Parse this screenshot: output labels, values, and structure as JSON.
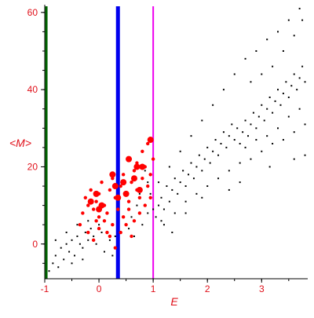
{
  "chart_data": {
    "type": "scatter",
    "title": "",
    "xlabel": "E",
    "ylabel": "<M>",
    "xlim": [
      -1.0,
      3.85
    ],
    "ylim": [
      -9.0,
      62.0
    ],
    "xticks": [
      -1,
      0,
      1,
      2,
      3
    ],
    "yticks": [
      0,
      20,
      40,
      60
    ],
    "grid": false,
    "axis_color": "#000000",
    "label_color": "#e0101a",
    "vertical_lines": [
      {
        "x": -0.97,
        "color": "#006400"
      },
      {
        "x": 0.35,
        "color": "#0000ee"
      },
      {
        "x": 1.0,
        "color": "#ee00ee"
      }
    ],
    "series": [
      {
        "color": "#000000",
        "point_size": "small",
        "points": [
          [
            -0.92,
            -7
          ],
          [
            -0.85,
            -5
          ],
          [
            -0.8,
            -3
          ],
          [
            -0.75,
            -6
          ],
          [
            -0.7,
            -1
          ],
          [
            -0.65,
            -4
          ],
          [
            -0.6,
            0
          ],
          [
            -0.55,
            -2
          ],
          [
            -0.5,
            1
          ],
          [
            -0.45,
            -3
          ],
          [
            -0.4,
            2
          ],
          [
            -0.35,
            0
          ],
          [
            -0.3,
            -1
          ],
          [
            -0.25,
            3
          ],
          [
            -0.2,
            1
          ],
          [
            -0.15,
            4
          ],
          [
            -0.1,
            2
          ],
          [
            -0.05,
            0
          ],
          [
            0.0,
            5
          ],
          [
            0.05,
            3
          ],
          [
            -0.8,
            1
          ],
          [
            -0.6,
            3
          ],
          [
            -0.4,
            5
          ],
          [
            -0.2,
            6
          ],
          [
            0.1,
            -2
          ],
          [
            0.2,
            1
          ],
          [
            0.25,
            -3
          ],
          [
            0.3,
            2
          ],
          [
            -0.3,
            -4
          ],
          [
            -0.5,
            -5
          ],
          [
            1.05,
            7
          ],
          [
            1.1,
            10
          ],
          [
            1.15,
            12
          ],
          [
            1.2,
            9
          ],
          [
            1.25,
            15
          ],
          [
            1.3,
            11
          ],
          [
            1.35,
            14
          ],
          [
            1.4,
            17
          ],
          [
            1.45,
            13
          ],
          [
            1.5,
            16
          ],
          [
            1.55,
            19
          ],
          [
            1.6,
            15
          ],
          [
            1.65,
            18
          ],
          [
            1.7,
            21
          ],
          [
            1.75,
            17
          ],
          [
            1.8,
            20
          ],
          [
            1.85,
            23
          ],
          [
            1.9,
            19
          ],
          [
            1.95,
            22
          ],
          [
            2.0,
            25
          ],
          [
            2.05,
            21
          ],
          [
            2.1,
            24
          ],
          [
            2.15,
            27
          ],
          [
            2.2,
            23
          ],
          [
            2.25,
            26
          ],
          [
            2.3,
            29
          ],
          [
            2.35,
            25
          ],
          [
            2.4,
            28
          ],
          [
            2.45,
            31
          ],
          [
            2.5,
            27
          ],
          [
            2.55,
            30
          ],
          [
            2.6,
            26
          ],
          [
            2.65,
            29
          ],
          [
            2.7,
            32
          ],
          [
            2.75,
            28
          ],
          [
            2.8,
            31
          ],
          [
            2.85,
            34
          ],
          [
            2.9,
            30
          ],
          [
            2.95,
            33
          ],
          [
            3.0,
            36
          ],
          [
            3.05,
            32
          ],
          [
            3.1,
            35
          ],
          [
            3.15,
            38
          ],
          [
            3.2,
            34
          ],
          [
            3.25,
            37
          ],
          [
            3.3,
            40
          ],
          [
            3.35,
            36
          ],
          [
            3.4,
            39
          ],
          [
            3.45,
            42
          ],
          [
            3.5,
            38
          ],
          [
            3.55,
            41
          ],
          [
            3.6,
            44
          ],
          [
            3.65,
            40
          ],
          [
            3.7,
            43
          ],
          [
            3.75,
            46
          ],
          [
            3.8,
            42
          ],
          [
            1.1,
            16
          ],
          [
            1.3,
            20
          ],
          [
            1.5,
            24
          ],
          [
            1.7,
            28
          ],
          [
            1.9,
            32
          ],
          [
            2.1,
            36
          ],
          [
            2.3,
            40
          ],
          [
            2.5,
            44
          ],
          [
            2.7,
            48
          ],
          [
            2.9,
            50
          ],
          [
            3.1,
            53
          ],
          [
            3.3,
            55
          ],
          [
            3.5,
            58
          ],
          [
            3.7,
            61
          ],
          [
            3.75,
            58
          ],
          [
            3.6,
            54
          ],
          [
            3.4,
            50
          ],
          [
            3.2,
            46
          ],
          [
            3.0,
            44
          ],
          [
            2.8,
            42
          ],
          [
            1.2,
            5
          ],
          [
            1.4,
            8
          ],
          [
            1.6,
            11
          ],
          [
            1.8,
            13
          ],
          [
            2.0,
            15
          ],
          [
            2.2,
            17
          ],
          [
            2.4,
            19
          ],
          [
            2.6,
            21
          ],
          [
            2.8,
            22
          ],
          [
            3.0,
            24
          ],
          [
            3.2,
            26
          ],
          [
            3.4,
            27
          ],
          [
            3.6,
            29
          ],
          [
            3.8,
            31
          ],
          [
            3.7,
            35
          ],
          [
            3.5,
            33
          ],
          [
            3.3,
            30
          ],
          [
            3.1,
            28
          ],
          [
            2.9,
            27
          ],
          [
            2.7,
            25
          ],
          [
            1.0,
            9
          ],
          [
            1.15,
            6
          ],
          [
            1.35,
            3
          ],
          [
            1.6,
            8
          ],
          [
            1.9,
            12
          ],
          [
            2.4,
            14
          ],
          [
            2.6,
            16
          ],
          [
            3.15,
            20
          ],
          [
            3.6,
            22
          ],
          [
            3.8,
            23
          ],
          [
            0.95,
            13
          ],
          [
            0.9,
            16
          ],
          [
            0.85,
            19
          ],
          [
            0.9,
            8
          ],
          [
            0.8,
            5
          ],
          [
            0.7,
            10
          ],
          [
            0.75,
            13
          ],
          [
            0.6,
            7
          ],
          [
            0.55,
            4
          ],
          [
            0.65,
            2
          ]
        ]
      },
      {
        "color": "#ff0000",
        "point_size": "medium",
        "points": [
          [
            -0.3,
            8
          ],
          [
            -0.25,
            12
          ],
          [
            -0.2,
            10
          ],
          [
            -0.15,
            14
          ],
          [
            -0.1,
            9
          ],
          [
            -0.05,
            11
          ],
          [
            0.0,
            13
          ],
          [
            0.05,
            16
          ],
          [
            0.1,
            10
          ],
          [
            0.15,
            8
          ],
          [
            0.2,
            14
          ],
          [
            0.25,
            17
          ],
          [
            0.3,
            12
          ],
          [
            0.35,
            9
          ],
          [
            0.4,
            15
          ],
          [
            0.45,
            18
          ],
          [
            0.5,
            13
          ],
          [
            0.55,
            11
          ],
          [
            0.6,
            16
          ],
          [
            0.65,
            19
          ],
          [
            0.7,
            14
          ],
          [
            0.75,
            12
          ],
          [
            0.8,
            17
          ],
          [
            0.85,
            20
          ],
          [
            0.9,
            15
          ],
          [
            0.95,
            18
          ],
          [
            1.0,
            22
          ],
          [
            0.9,
            26
          ],
          [
            0.8,
            24
          ],
          [
            0.7,
            21
          ],
          [
            -0.35,
            5
          ],
          [
            -0.2,
            3
          ],
          [
            -0.1,
            1
          ],
          [
            0.0,
            4
          ],
          [
            0.1,
            6
          ],
          [
            0.2,
            2
          ],
          [
            0.3,
            -1
          ],
          [
            0.4,
            3
          ],
          [
            0.5,
            5
          ],
          [
            0.6,
            2
          ],
          [
            0.0,
            7
          ],
          [
            0.15,
            3
          ],
          [
            0.25,
            5
          ],
          [
            0.45,
            7
          ],
          [
            0.55,
            9
          ],
          [
            0.65,
            6
          ],
          [
            0.75,
            8
          ],
          [
            0.85,
            10
          ],
          [
            0.95,
            12
          ],
          [
            -0.05,
            6
          ]
        ]
      },
      {
        "color": "#ff0000",
        "point_size": "large",
        "points": [
          [
            -0.05,
            13
          ],
          [
            0.05,
            10
          ],
          [
            -0.15,
            11
          ],
          [
            0.25,
            18
          ],
          [
            0.3,
            15
          ],
          [
            0.55,
            22
          ],
          [
            0.7,
            20
          ],
          [
            0.8,
            20
          ],
          [
            0.65,
            17
          ],
          [
            0.95,
            27
          ],
          [
            0.45,
            16
          ],
          [
            0.75,
            14
          ],
          [
            0.35,
            12
          ],
          [
            0.0,
            9
          ],
          [
            0.5,
            13
          ]
        ]
      }
    ]
  }
}
